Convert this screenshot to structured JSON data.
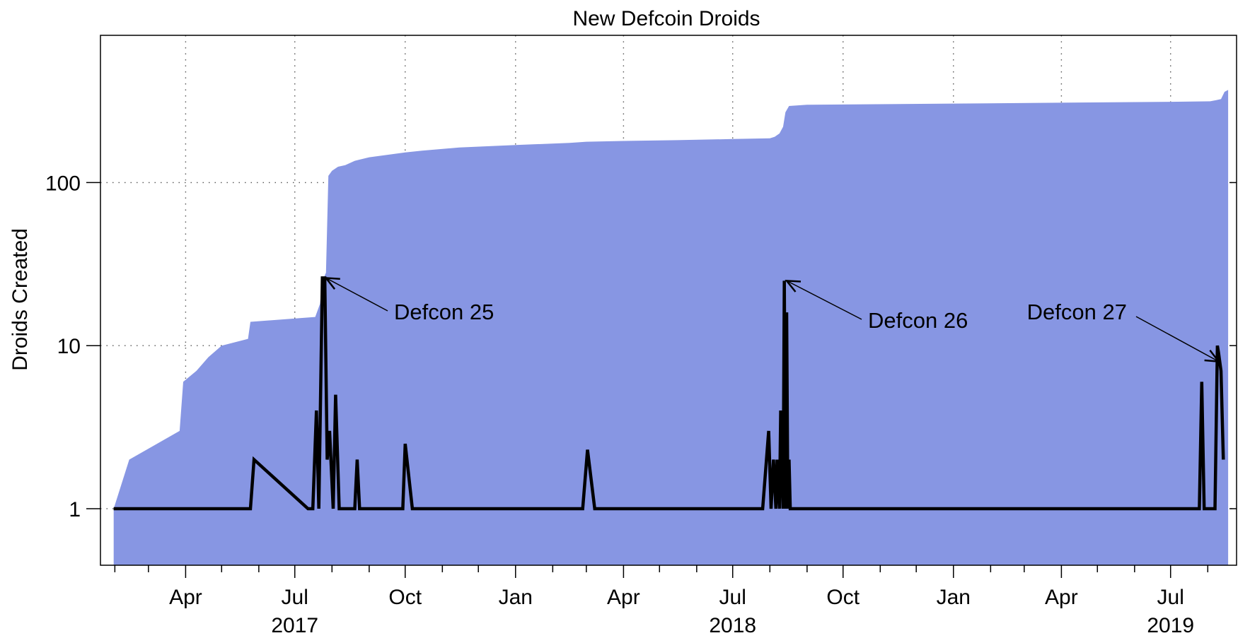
{
  "chart_data": {
    "type": "area",
    "title": "New Defcoin Droids",
    "xlabel": "",
    "ylabel": "Droids Created",
    "y_scale": "log",
    "ylim": [
      0.45,
      800
    ],
    "xlim": [
      "2017-01-20",
      "2019-08-25"
    ],
    "y_ticks": [
      {
        "value": 1,
        "label": "1"
      },
      {
        "value": 10,
        "label": "10"
      },
      {
        "value": 100,
        "label": "100"
      }
    ],
    "x_ticks_major": [
      {
        "date": "2017-04-01",
        "label": "Apr"
      },
      {
        "date": "2017-07-01",
        "label": "Jul"
      },
      {
        "date": "2017-10-01",
        "label": "Oct"
      },
      {
        "date": "2018-01-01",
        "label": "Jan"
      },
      {
        "date": "2018-04-01",
        "label": "Apr"
      },
      {
        "date": "2018-07-01",
        "label": "Jul"
      },
      {
        "date": "2018-10-01",
        "label": "Oct"
      },
      {
        "date": "2019-01-01",
        "label": "Jan"
      },
      {
        "date": "2019-04-01",
        "label": "Apr"
      },
      {
        "date": "2019-07-01",
        "label": "Jul"
      }
    ],
    "x_ticks_minor": [
      "2017-02-01",
      "2017-03-01",
      "2017-05-01",
      "2017-06-01",
      "2017-08-01",
      "2017-09-01",
      "2017-11-01",
      "2017-12-01",
      "2018-02-01",
      "2018-03-01",
      "2018-05-01",
      "2018-06-01",
      "2018-08-01",
      "2018-09-01",
      "2018-11-01",
      "2018-12-01",
      "2019-02-01",
      "2019-03-01",
      "2019-05-01",
      "2019-06-01",
      "2019-08-01"
    ],
    "year_labels": [
      {
        "date": "2017-07-01",
        "label": "2017"
      },
      {
        "date": "2018-07-01",
        "label": "2018"
      },
      {
        "date": "2019-07-01",
        "label": "2019"
      }
    ],
    "grid": true,
    "colors": {
      "area": "#8796e3",
      "line": "#000000",
      "frame": "#000000",
      "grid": "#555555"
    },
    "series": [
      {
        "kind": "area",
        "points": [
          [
            "2017-01-31",
            1
          ],
          [
            "2017-02-13",
            2
          ],
          [
            "2017-03-27",
            3
          ],
          [
            "2017-03-30",
            6
          ],
          [
            "2017-04-10",
            7
          ],
          [
            "2017-04-20",
            8.5
          ],
          [
            "2017-05-01",
            10
          ],
          [
            "2017-05-23",
            11
          ],
          [
            "2017-05-25",
            14
          ],
          [
            "2017-07-18",
            15
          ],
          [
            "2017-07-22",
            18
          ],
          [
            "2017-07-24",
            25
          ],
          [
            "2017-07-27",
            28
          ],
          [
            "2017-07-29",
            110
          ],
          [
            "2017-08-01",
            118
          ],
          [
            "2017-08-06",
            125
          ],
          [
            "2017-08-12",
            128
          ],
          [
            "2017-08-20",
            136
          ],
          [
            "2017-09-01",
            143
          ],
          [
            "2017-10-01",
            153
          ],
          [
            "2017-10-15",
            157
          ],
          [
            "2017-11-15",
            164
          ],
          [
            "2018-01-01",
            170
          ],
          [
            "2018-02-15",
            175
          ],
          [
            "2018-03-01",
            178
          ],
          [
            "2018-04-01",
            180
          ],
          [
            "2018-05-15",
            182
          ],
          [
            "2018-07-01",
            185
          ],
          [
            "2018-08-01",
            187
          ],
          [
            "2018-08-05",
            191
          ],
          [
            "2018-08-09",
            200
          ],
          [
            "2018-08-12",
            220
          ],
          [
            "2018-08-14",
            270
          ],
          [
            "2018-08-17",
            295
          ],
          [
            "2018-09-01",
            300
          ],
          [
            "2019-01-01",
            305
          ],
          [
            "2019-07-01",
            313
          ],
          [
            "2019-08-03",
            315
          ],
          [
            "2019-08-08",
            320
          ],
          [
            "2019-08-12",
            325
          ],
          [
            "2019-08-15",
            360
          ],
          [
            "2019-08-18",
            370
          ]
        ]
      },
      {
        "kind": "line",
        "points": [
          [
            "2017-01-31",
            1
          ],
          [
            "2017-05-25",
            1
          ],
          [
            "2017-05-28",
            2
          ],
          [
            "2017-07-12",
            1
          ],
          [
            "2017-07-16",
            1
          ],
          [
            "2017-07-19",
            4
          ],
          [
            "2017-07-21",
            1
          ],
          [
            "2017-07-24",
            26
          ],
          [
            "2017-07-26",
            26
          ],
          [
            "2017-07-28",
            2
          ],
          [
            "2017-07-30",
            3
          ],
          [
            "2017-08-02",
            1
          ],
          [
            "2017-08-04",
            5
          ],
          [
            "2017-08-07",
            1
          ],
          [
            "2017-08-20",
            1
          ],
          [
            "2017-08-22",
            2
          ],
          [
            "2017-08-24",
            1
          ],
          [
            "2017-09-29",
            1
          ],
          [
            "2017-10-01",
            2.5
          ],
          [
            "2017-10-07",
            1
          ],
          [
            "2018-02-26",
            1
          ],
          [
            "2018-03-02",
            2.3
          ],
          [
            "2018-03-08",
            1
          ],
          [
            "2018-07-26",
            1
          ],
          [
            "2018-07-31",
            3
          ],
          [
            "2018-08-02",
            1
          ],
          [
            "2018-08-04",
            2
          ],
          [
            "2018-08-06",
            1
          ],
          [
            "2018-08-07",
            2
          ],
          [
            "2018-08-09",
            1
          ],
          [
            "2018-08-10",
            4
          ],
          [
            "2018-08-12",
            1
          ],
          [
            "2018-08-13",
            25
          ],
          [
            "2018-08-14",
            1
          ],
          [
            "2018-08-15",
            16
          ],
          [
            "2018-08-16",
            1
          ],
          [
            "2018-08-17",
            2
          ],
          [
            "2018-08-18",
            1
          ],
          [
            "2019-07-25",
            1
          ],
          [
            "2019-07-27",
            6
          ],
          [
            "2019-07-29",
            1
          ],
          [
            "2019-08-07",
            1
          ],
          [
            "2019-08-09",
            10
          ],
          [
            "2019-08-10",
            9
          ],
          [
            "2019-08-12",
            7
          ],
          [
            "2019-08-14",
            2
          ]
        ]
      }
    ],
    "annotations": [
      {
        "text": "Defcon 25",
        "date": "2017-07-27",
        "value": 26
      },
      {
        "text": "Defcon 26",
        "date": "2018-08-15",
        "value": 25
      },
      {
        "text": "Defcon 27",
        "date": "2019-08-10",
        "value": 8
      }
    ]
  }
}
